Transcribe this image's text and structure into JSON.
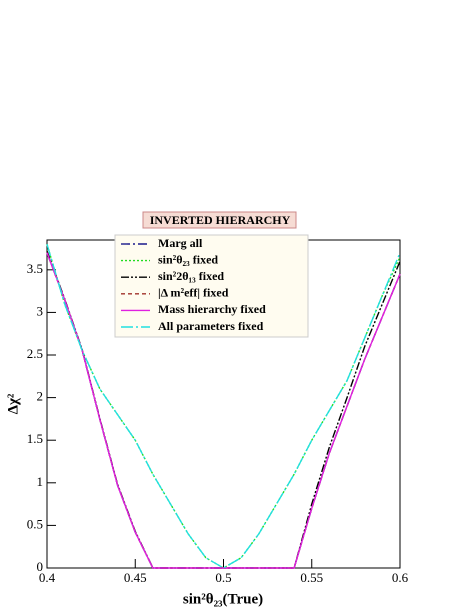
{
  "chart_data": {
    "type": "line",
    "title": "INVERTED HIERARCHY",
    "x_label": "sin²θ₂₃(True)",
    "y_label": "Δχ²",
    "x": [
      0.4,
      0.41,
      0.42,
      0.43,
      0.44,
      0.45,
      0.46,
      0.47,
      0.48,
      0.49,
      0.5,
      0.51,
      0.52,
      0.53,
      0.54,
      0.55,
      0.56,
      0.57,
      0.58,
      0.59,
      0.6
    ],
    "series": [
      {
        "name": "Marg all",
        "color": "#1a1a8c",
        "dash": "9,3,2,3",
        "values": [
          3.7,
          3.15,
          2.55,
          1.74,
          0.97,
          0.42,
          0,
          0,
          0,
          0,
          0,
          0,
          0,
          0,
          0,
          0.7,
          1.35,
          1.9,
          2.45,
          2.95,
          3.45
        ]
      },
      {
        "name": "sin²θ₂₃ fixed",
        "color": "#22dd22",
        "dash": "2,2",
        "values": [
          3.8,
          3.1,
          2.55,
          2.1,
          1.8,
          1.5,
          1.1,
          0.75,
          0.4,
          0.12,
          0,
          0.12,
          0.4,
          0.75,
          1.1,
          1.5,
          1.85,
          2.2,
          2.7,
          3.2,
          3.65
        ]
      },
      {
        "name": "sin²2θ₁₃ fixed",
        "color": "#000000",
        "dash": "8,2,2,2,2,2",
        "values": [
          3.72,
          3.16,
          2.56,
          1.75,
          0.98,
          0.43,
          0,
          0,
          0,
          0,
          0,
          0,
          0,
          0,
          0,
          0.75,
          1.42,
          2.0,
          2.6,
          3.1,
          3.6
        ]
      },
      {
        "name": "|Δ m²eff| fixed",
        "color": "#a0302a",
        "dash": "4,3",
        "values": [
          3.7,
          3.15,
          2.55,
          1.74,
          0.97,
          0.42,
          0,
          0,
          0,
          0,
          0,
          0,
          0,
          0,
          0,
          0.7,
          1.35,
          1.9,
          2.45,
          2.95,
          3.45
        ]
      },
      {
        "name": "Mass hierarchy fixed",
        "color": "#e020e0",
        "dash": "",
        "values": [
          3.7,
          3.15,
          2.55,
          1.74,
          0.97,
          0.42,
          0,
          0,
          0,
          0,
          0,
          0,
          0,
          0,
          0,
          0.7,
          1.35,
          1.9,
          2.45,
          2.95,
          3.45
        ]
      },
      {
        "name": "All parameters fixed",
        "color": "#22e0e0",
        "dash": "12,3,2,3",
        "values": [
          3.8,
          3.1,
          2.55,
          2.1,
          1.8,
          1.5,
          1.1,
          0.75,
          0.4,
          0.12,
          0,
          0.12,
          0.4,
          0.75,
          1.1,
          1.5,
          1.85,
          2.2,
          2.7,
          3.2,
          3.7
        ]
      }
    ],
    "xlim": [
      0.4,
      0.6
    ],
    "xticks": [
      0.4,
      0.45,
      0.5,
      0.55,
      0.6
    ],
    "ylim": [
      0,
      3.85
    ],
    "yticks": [
      0,
      0.5,
      1,
      1.5,
      2,
      2.5,
      3,
      3.5
    ],
    "grid": false,
    "legend": "top"
  }
}
